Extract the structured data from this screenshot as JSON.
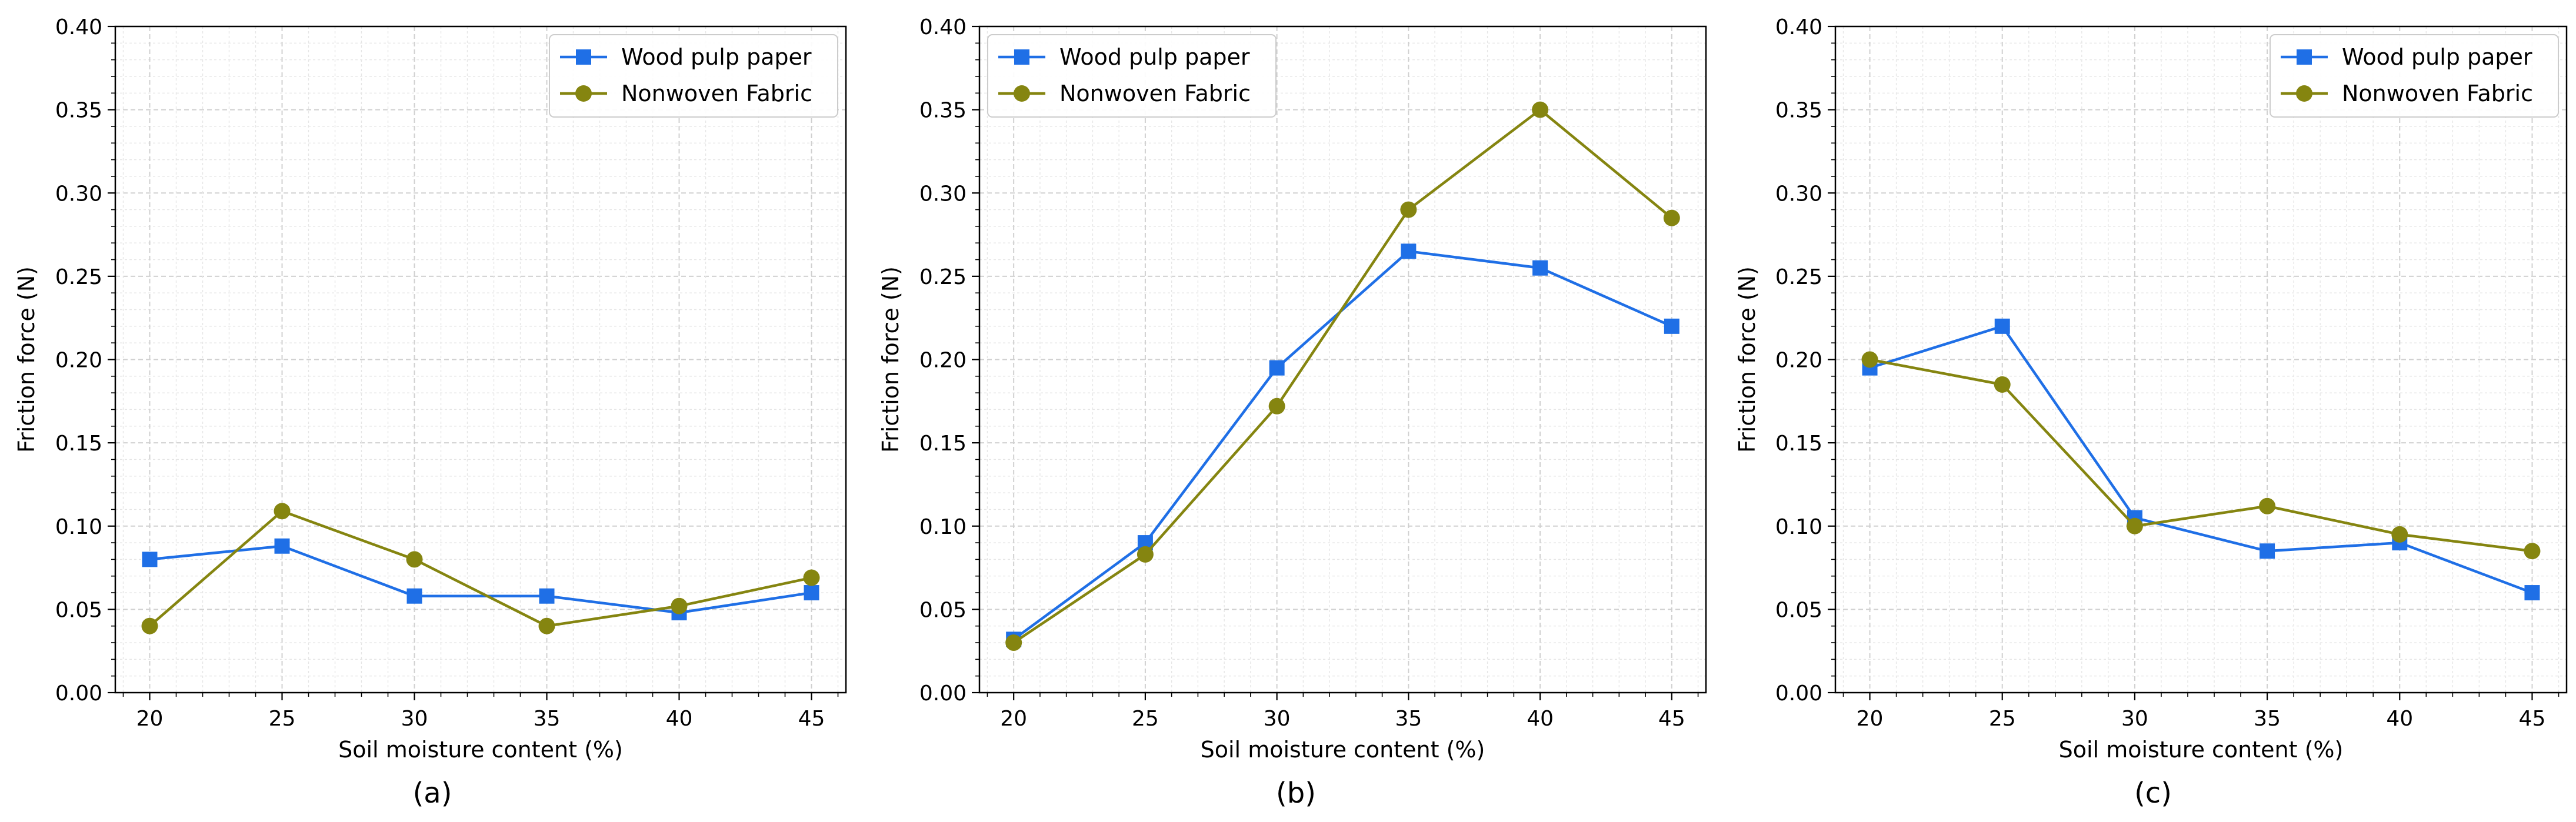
{
  "colors": {
    "wood": "#1f6fe6",
    "nonwoven": "#858510",
    "grid_major": "#d0d0d0",
    "grid_minor": "#e6e6e6",
    "axis": "#000000"
  },
  "chart_data": [
    {
      "type": "line",
      "panel_label": "(a)",
      "xlabel": "Soil moisture content (%)",
      "ylabel": "Friction force (N)",
      "xlim": [
        18.7,
        46.3
      ],
      "ylim": [
        0,
        0.4
      ],
      "xticks": [
        20,
        25,
        30,
        35,
        40,
        45
      ],
      "yticks": [
        0,
        0.05,
        0.1,
        0.15,
        0.2,
        0.25,
        0.3,
        0.35,
        0.4
      ],
      "grid": true,
      "legend_position": "top-right",
      "x": [
        20,
        25,
        30,
        35,
        40,
        45
      ],
      "series": [
        {
          "name": "Wood pulp paper",
          "marker": "square",
          "values": [
            0.08,
            0.088,
            0.058,
            0.058,
            0.048,
            0.06
          ]
        },
        {
          "name": "Nonwoven Fabric",
          "marker": "circle",
          "values": [
            0.04,
            0.109,
            0.08,
            0.04,
            0.052,
            0.069
          ]
        }
      ]
    },
    {
      "type": "line",
      "panel_label": "(b)",
      "xlabel": "Soil moisture content (%)",
      "ylabel": "Friction force (N)",
      "xlim": [
        18.7,
        46.3
      ],
      "ylim": [
        0,
        0.4
      ],
      "xticks": [
        20,
        25,
        30,
        35,
        40,
        45
      ],
      "yticks": [
        0,
        0.05,
        0.1,
        0.15,
        0.2,
        0.25,
        0.3,
        0.35,
        0.4
      ],
      "grid": true,
      "legend_position": "top-left",
      "x": [
        20,
        25,
        30,
        35,
        40,
        45
      ],
      "series": [
        {
          "name": "Wood pulp paper",
          "marker": "square",
          "values": [
            0.032,
            0.09,
            0.195,
            0.265,
            0.255,
            0.22
          ]
        },
        {
          "name": "Nonwoven Fabric",
          "marker": "circle",
          "values": [
            0.03,
            0.083,
            0.172,
            0.29,
            0.35,
            0.285
          ]
        }
      ]
    },
    {
      "type": "line",
      "panel_label": "(c)",
      "xlabel": "Soil moisture content (%)",
      "ylabel": "Friction force (N)",
      "xlim": [
        18.7,
        46.3
      ],
      "ylim": [
        0,
        0.4
      ],
      "xticks": [
        20,
        25,
        30,
        35,
        40,
        45
      ],
      "yticks": [
        0,
        0.05,
        0.1,
        0.15,
        0.2,
        0.25,
        0.3,
        0.35,
        0.4
      ],
      "grid": true,
      "legend_position": "top-right",
      "x": [
        20,
        25,
        30,
        35,
        40,
        45
      ],
      "series": [
        {
          "name": "Wood pulp paper",
          "marker": "square",
          "values": [
            0.195,
            0.22,
            0.105,
            0.085,
            0.09,
            0.06
          ]
        },
        {
          "name": "Nonwoven Fabric",
          "marker": "circle",
          "values": [
            0.2,
            0.185,
            0.1,
            0.112,
            0.095,
            0.085
          ]
        }
      ]
    }
  ]
}
